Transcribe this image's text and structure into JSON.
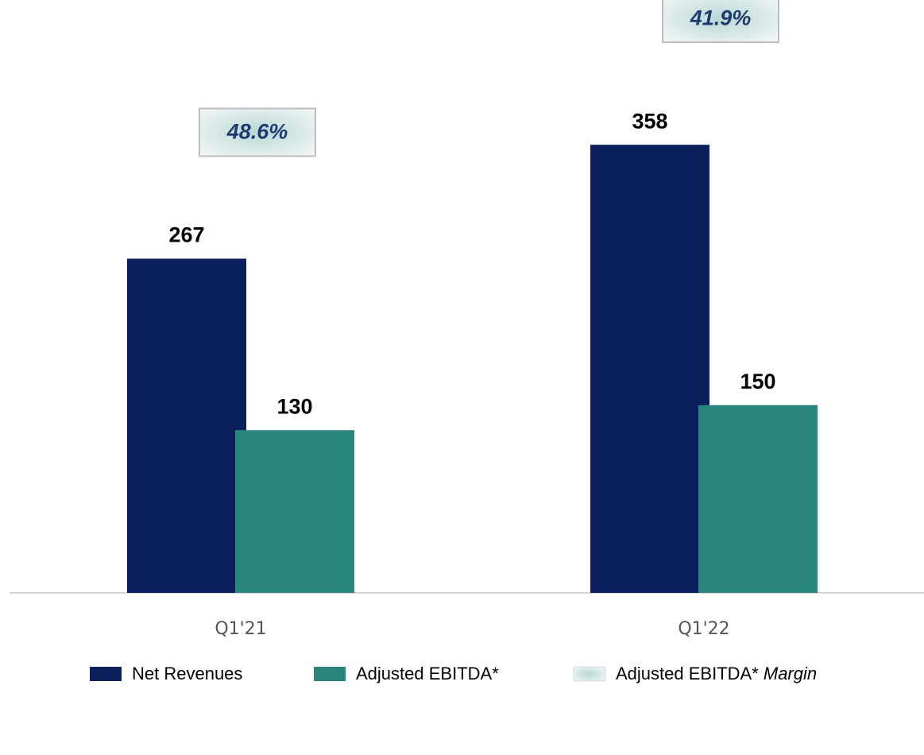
{
  "chart_data": {
    "type": "bar",
    "categories": [
      "Q1'21",
      "Q1'22"
    ],
    "ylim": [
      0,
      400
    ],
    "series": [
      {
        "name": "Net Revenues",
        "color": "#0b1f5c",
        "values": [
          267,
          358
        ]
      },
      {
        "name": "Adjusted EBITDA*",
        "color": "#2a857d",
        "values": [
          130,
          150
        ]
      },
      {
        "name": "Adjusted EBITDA*",
        "name_italic": "Margin",
        "color": "#cfe3e1",
        "values": [
          48.6,
          41.9
        ],
        "value_labels": [
          "48.6%",
          "41.9%"
        ]
      }
    ]
  }
}
